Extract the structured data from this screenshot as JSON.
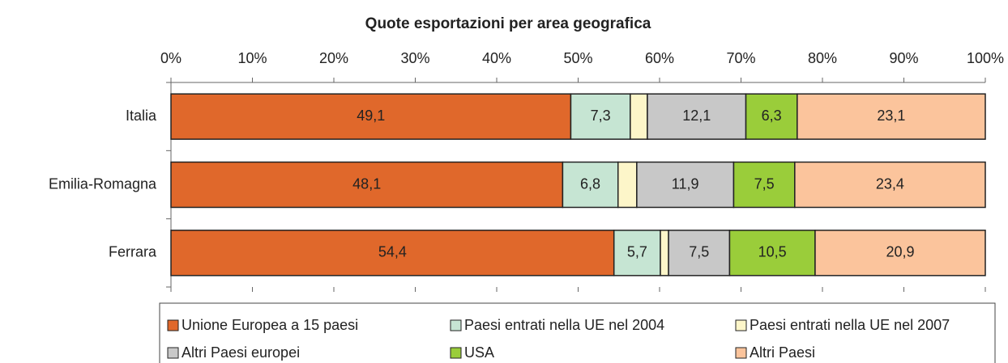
{
  "chart_data": {
    "type": "stacked-bar-horizontal",
    "title": "Quote esportazioni per area geografica",
    "categories": [
      "Italia",
      "Emilia-Romagna",
      "Ferrara"
    ],
    "series": [
      {
        "name": "Unione Europea a 15 paesi",
        "color": "#e0682b",
        "values": [
          49.1,
          48.1,
          54.4
        ],
        "value_labels": [
          "49,1",
          "48,1",
          "54,4"
        ]
      },
      {
        "name": "Paesi entrati nella UE nel 2004",
        "color": "#c6e5d3",
        "values": [
          7.3,
          6.8,
          5.7
        ],
        "value_labels": [
          "7,3",
          "6,8",
          "5,7"
        ]
      },
      {
        "name": "Paesi entrati nella UE nel 2007",
        "color": "#fdf6c9",
        "values": [
          2.1,
          2.3,
          1.0
        ],
        "value_labels": [
          null,
          null,
          null
        ]
      },
      {
        "name": "Altri Paesi europei",
        "color": "#c8c8c8",
        "values": [
          12.1,
          11.9,
          7.5
        ],
        "value_labels": [
          "12,1",
          "11,9",
          "7,5"
        ]
      },
      {
        "name": "USA",
        "color": "#9acd3a",
        "values": [
          6.3,
          7.5,
          10.5
        ],
        "value_labels": [
          "6,3",
          "7,5",
          "10,5"
        ]
      },
      {
        "name": "Altri Paesi",
        "color": "#fbc49c",
        "values": [
          23.1,
          23.4,
          20.9
        ],
        "value_labels": [
          "23,1",
          "23,4",
          "20,9"
        ]
      }
    ],
    "xlim": [
      0,
      100
    ],
    "xticks": [
      {
        "value": 0,
        "label": "0%"
      },
      {
        "value": 10,
        "label": "10%"
      },
      {
        "value": 20,
        "label": "20%"
      },
      {
        "value": 30,
        "label": "30%"
      },
      {
        "value": 40,
        "label": "40%"
      },
      {
        "value": 50,
        "label": "50%"
      },
      {
        "value": 60,
        "label": "60%"
      },
      {
        "value": 70,
        "label": "70%"
      },
      {
        "value": 80,
        "label": "80%"
      },
      {
        "value": 90,
        "label": "90%"
      },
      {
        "value": 100,
        "label": "100%"
      }
    ],
    "legend": "bottom"
  }
}
